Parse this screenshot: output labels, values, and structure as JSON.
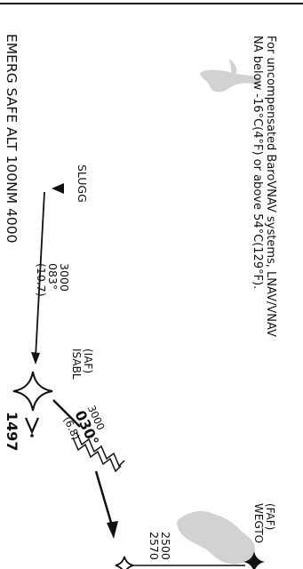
{
  "approach_plate": {
    "notes": {
      "line1": "For uncompensated BaroVNAV systems, LNAV/VNAV",
      "line2": "NA below -16°C(4°F) or above 54°C(129°F)."
    },
    "emergency_safe_altitude": "EMERG SAFE ALT 100NM 4000",
    "fixes": {
      "slugg": {
        "name": "SLUGG"
      },
      "isabl": {
        "role": "(IAF)",
        "name": "ISABL"
      },
      "wegto": {
        "role": "(FAF)",
        "name": "WEGTO"
      }
    },
    "legs": {
      "slugg_isabl": {
        "altitude": "3000",
        "course": "083°",
        "distance": "(10.7)"
      },
      "isabl_out": {
        "altitude": "3000",
        "course": "030°",
        "distance": "(6.8)"
      }
    },
    "obstacle": {
      "elevation": "1497"
    },
    "lower_altitudes": {
      "first": "2500",
      "second": "2570"
    },
    "colors": {
      "ink": "#111111",
      "terrain_shading": "#d2d2d2",
      "background": "#ffffff"
    }
  }
}
